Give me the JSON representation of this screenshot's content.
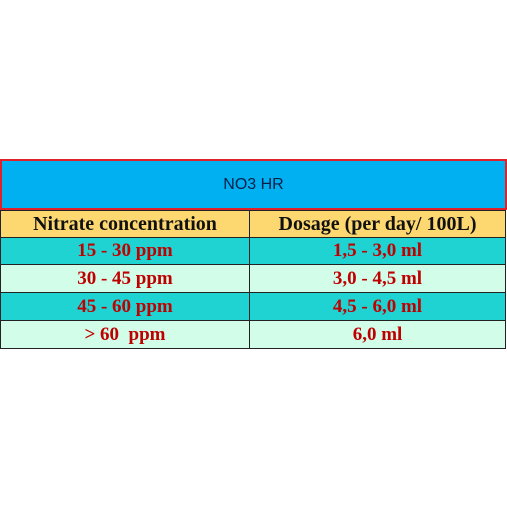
{
  "table": {
    "title": "NO3 HR",
    "header": [
      "Nitrate concentration",
      "Dosage (per day/ 100L)"
    ],
    "rows": [
      [
        "15 - 30 ppm",
        "1,5 - 3,0 ml"
      ],
      [
        "30 - 45 ppm",
        "3,0 - 4,5 ml"
      ],
      [
        "45 - 60 ppm",
        "4,5 - 6,0 ml"
      ],
      [
        "> 60  ppm",
        "6,0 ml"
      ]
    ]
  }
}
